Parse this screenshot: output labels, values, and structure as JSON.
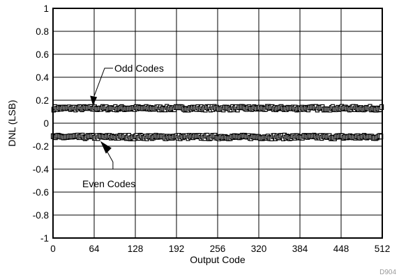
{
  "chart_data": {
    "type": "line",
    "xlabel": "Output Code",
    "ylabel": "DNL (LSB)",
    "xlim": [
      0,
      512
    ],
    "ylim": [
      -1,
      1
    ],
    "x_ticks": [
      0,
      64,
      128,
      192,
      256,
      320,
      384,
      448,
      512
    ],
    "x_tick_labels": [
      "0",
      "64",
      "128",
      "192",
      "256",
      "320",
      "384",
      "448",
      "512"
    ],
    "y_ticks": [
      1,
      0.8,
      0.6,
      0.4,
      0.2,
      0,
      -0.2,
      -0.4,
      -0.6,
      -0.8,
      -1
    ],
    "y_tick_labels": [
      "1",
      "0.8",
      "0.6",
      "0.4",
      "0.2",
      "0",
      "-0.2",
      "-0.4",
      "-0.6",
      "-0.8",
      "-1"
    ],
    "grid": true,
    "marker": "square",
    "series": [
      {
        "name": "Odd Codes",
        "color": "#000000",
        "mean": 0.13,
        "spread": 0.012,
        "x_start": 1,
        "x_step": 2,
        "x_end": 511
      },
      {
        "name": "Even Codes",
        "color": "#000000",
        "mean": -0.12,
        "spread": 0.012,
        "x_start": 0,
        "x_step": 2,
        "x_end": 510
      }
    ],
    "annotations": [
      {
        "text": "Odd Codes",
        "target_series": "Odd Codes",
        "target_x": 62
      },
      {
        "text": "Even Codes",
        "target_series": "Even Codes",
        "target_x": 78
      }
    ],
    "figure_id": "D904"
  }
}
